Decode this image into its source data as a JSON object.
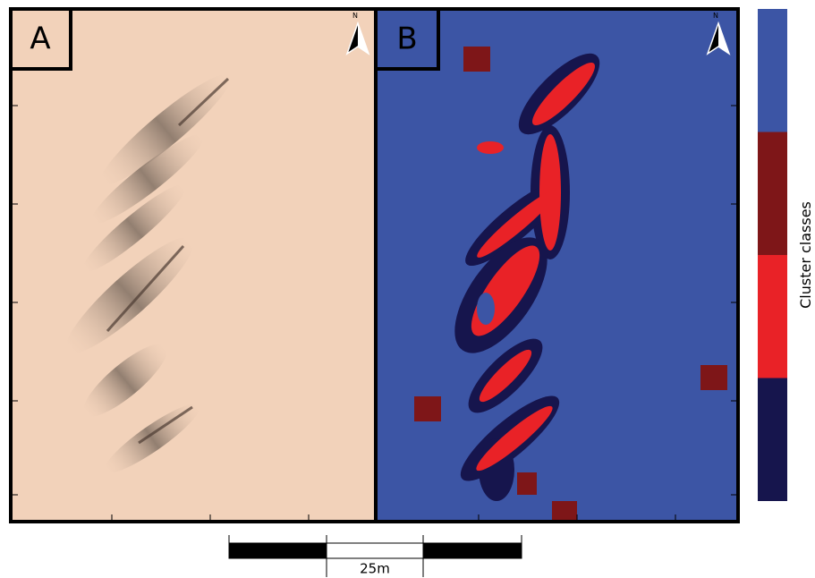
{
  "panels": [
    {
      "label": "A"
    },
    {
      "label": "B"
    }
  ],
  "north_label": "N",
  "scale_bar": {
    "label": "25m"
  },
  "legend": {
    "title": "Cluster classes",
    "colors": [
      "#3c55a5",
      "#7e1618",
      "#e92227",
      "#16154d"
    ]
  }
}
